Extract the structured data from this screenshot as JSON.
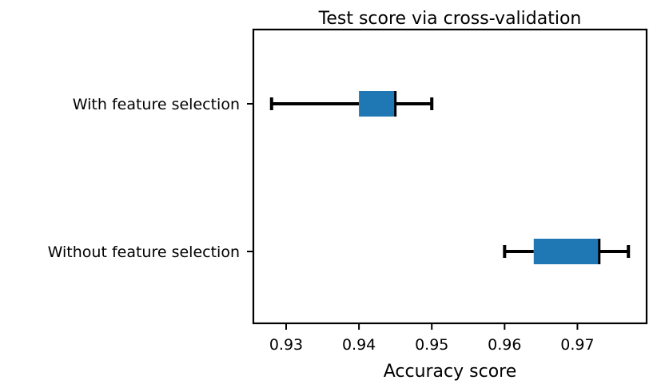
{
  "chart_data": {
    "type": "boxplot",
    "orientation": "horizontal",
    "title": "Test score via cross-validation",
    "xlabel": "Accuracy score",
    "ylabel": "",
    "xlim": [
      0.9255,
      0.9795
    ],
    "xticks": [
      "0.93",
      "0.94",
      "0.95",
      "0.96",
      "0.97"
    ],
    "xtick_values": [
      0.93,
      0.94,
      0.95,
      0.96,
      0.97
    ],
    "grid": false,
    "box_color": "#1f77b4",
    "line_color": "#000000",
    "series": [
      {
        "label": "With feature selection",
        "min": 0.928,
        "q1": 0.94,
        "median": 0.945,
        "q3": 0.945,
        "max": 0.95
      },
      {
        "label": "Without feature selection",
        "min": 0.96,
        "q1": 0.964,
        "median": 0.973,
        "q3": 0.973,
        "max": 0.977
      }
    ]
  }
}
